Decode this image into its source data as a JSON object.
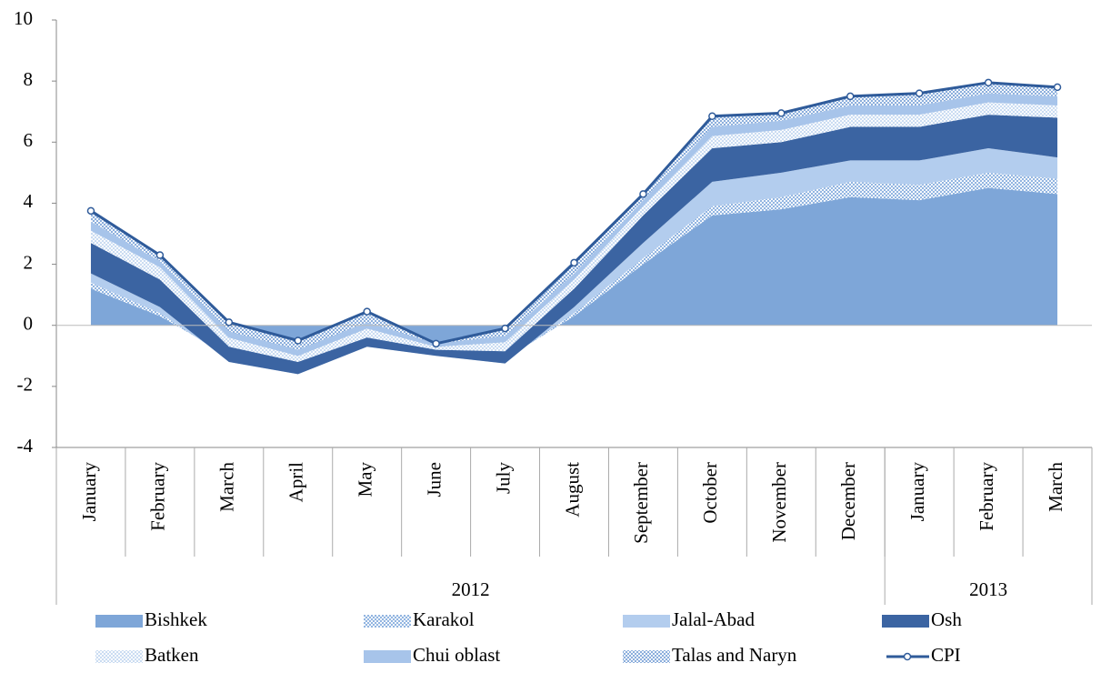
{
  "chart_data": {
    "type": "stacked_area",
    "categories": [
      "January",
      "February",
      "March",
      "April",
      "May",
      "June",
      "July",
      "August",
      "September",
      "October",
      "November",
      "December",
      "January",
      "February",
      "March"
    ],
    "groups": [
      {
        "label": "2012",
        "size": 12
      },
      {
        "label": "2013",
        "size": 3
      }
    ],
    "series": [
      {
        "name": "Bishkek",
        "color": "#7ea6d8",
        "values": [
          1.2,
          0.3,
          -1.0,
          -1.3,
          -0.6,
          -0.9,
          -1.1,
          0.3,
          2.0,
          3.6,
          3.8,
          4.2,
          4.1,
          4.5,
          4.3
        ]
      },
      {
        "name": "Karakol",
        "color": "#8fb3e0",
        "pattern": "dots",
        "values": [
          0.2,
          0.1,
          -0.1,
          -0.1,
          -0.05,
          0,
          -0.05,
          0.1,
          0.2,
          0.3,
          0.4,
          0.5,
          0.5,
          0.5,
          0.5
        ]
      },
      {
        "name": "Jalal-Abad",
        "color": "#b3cdee",
        "values": [
          0.3,
          0.2,
          -0.1,
          -0.2,
          -0.05,
          -0.1,
          -0.1,
          0.2,
          0.5,
          0.8,
          0.8,
          0.7,
          0.8,
          0.8,
          0.7
        ]
      },
      {
        "name": "Osh",
        "color": "#3b64a2",
        "values": [
          1.0,
          0.9,
          0.5,
          0.4,
          0.3,
          0.2,
          0.4,
          0.6,
          0.9,
          1.1,
          1.0,
          1.1,
          1.1,
          1.1,
          1.3
        ]
      },
      {
        "name": "Batken",
        "color": "#c9dbf2",
        "pattern": "dots",
        "values": [
          0.4,
          0.4,
          0.3,
          0.2,
          0.3,
          0.1,
          0.3,
          0.3,
          0.3,
          0.4,
          0.4,
          0.4,
          0.4,
          0.4,
          0.4
        ]
      },
      {
        "name": "Chui oblast",
        "color": "#a7c4ea",
        "values": [
          0.3,
          0.2,
          0.2,
          0.2,
          0.2,
          0.1,
          0.2,
          0.2,
          0.2,
          0.3,
          0.3,
          0.3,
          0.3,
          0.3,
          0.3
        ]
      },
      {
        "name": "Talas and Naryn",
        "color": "#88acdb",
        "pattern": "dots",
        "values": [
          0.35,
          0.2,
          0.3,
          0.3,
          0.35,
          0.0,
          0.25,
          0.35,
          0.2,
          0.35,
          0.25,
          0.3,
          0.4,
          0.35,
          0.3
        ]
      },
      {
        "name": "CPI",
        "type": "line",
        "color": "#2f5b9a",
        "values": [
          3.75,
          2.3,
          0.1,
          -0.5,
          0.45,
          -0.6,
          -0.1,
          2.05,
          4.3,
          6.85,
          6.95,
          7.5,
          7.6,
          7.95,
          7.8
        ]
      }
    ],
    "ylim": [
      -4,
      10
    ],
    "yticks": [
      -4,
      -2,
      0,
      2,
      4,
      6,
      8,
      10
    ]
  }
}
